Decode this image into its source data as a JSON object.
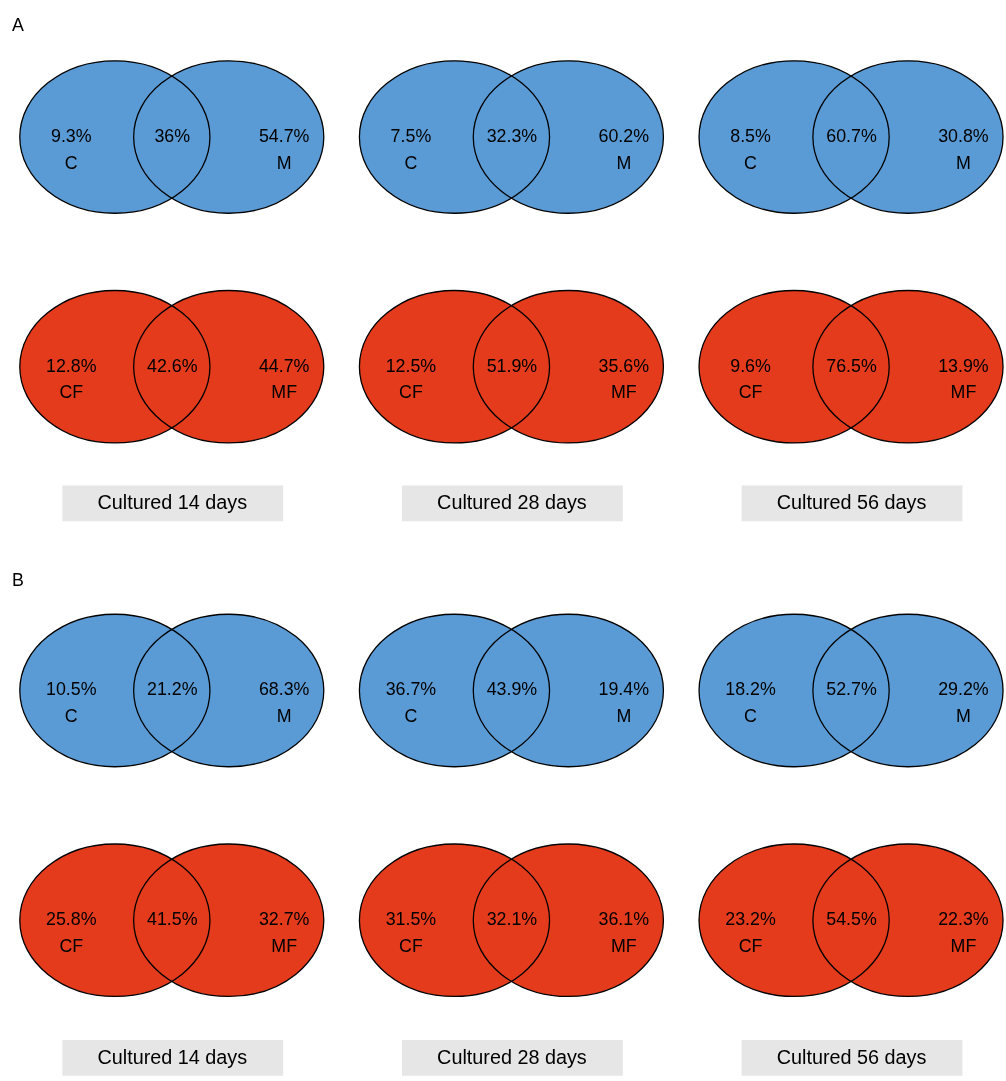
{
  "chart_data": [
    {
      "type": "other",
      "annotations": [
        "A"
      ],
      "categories": [
        "C",
        null,
        "M"
      ],
      "values": [
        9.3,
        36,
        54.7
      ],
      "value_labels": [
        "9.3%",
        "36%",
        "54.7%"
      ],
      "color": "#5b9bd5"
    },
    {
      "type": "other",
      "categories": [
        "C",
        null,
        "M"
      ],
      "values": [
        7.5,
        32.3,
        60.2
      ],
      "value_labels": [
        "7.5%",
        "32.3%",
        "60.2%"
      ],
      "color": "#5b9bd5"
    },
    {
      "type": "other",
      "categories": [
        "C",
        null,
        "M"
      ],
      "values": [
        8.5,
        60.7,
        30.8
      ],
      "value_labels": [
        "8.5%",
        "60.7%",
        "30.8%"
      ],
      "color": "#5b9bd5"
    },
    {
      "type": "other",
      "annotations": [
        "Cultured 14 days"
      ],
      "categories": [
        "CF",
        null,
        "MF"
      ],
      "values": [
        12.8,
        42.6,
        44.7
      ],
      "value_labels": [
        "12.8%",
        "42.6%",
        "44.7%"
      ],
      "color": "#e33b1b"
    },
    {
      "type": "other",
      "annotations": [
        "Cultured 28 days"
      ],
      "categories": [
        "CF",
        null,
        "MF"
      ],
      "values": [
        12.5,
        51.9,
        35.6
      ],
      "value_labels": [
        "12.5%",
        "51.9%",
        "35.6%"
      ],
      "color": "#e33b1b"
    },
    {
      "type": "other",
      "annotations": [
        "Cultured 56 days"
      ],
      "categories": [
        "CF",
        null,
        "MF"
      ],
      "values": [
        9.6,
        76.5,
        13.9
      ],
      "value_labels": [
        "9.6%",
        "76.5%",
        "13.9%"
      ],
      "color": "#e33b1b"
    },
    {
      "type": "other",
      "annotations": [
        "B"
      ],
      "categories": [
        "C",
        null,
        "M"
      ],
      "values": [
        10.5,
        21.2,
        68.3
      ],
      "value_labels": [
        "10.5%",
        "21.2%",
        "68.3%"
      ],
      "color": "#5b9bd5"
    },
    {
      "type": "other",
      "categories": [
        "C",
        null,
        "M"
      ],
      "values": [
        36.7,
        43.9,
        19.4
      ],
      "value_labels": [
        "36.7%",
        "43.9%",
        "19.4%"
      ],
      "color": "#5b9bd5"
    },
    {
      "type": "other",
      "categories": [
        "C",
        null,
        "M"
      ],
      "values": [
        18.2,
        52.7,
        29.2
      ],
      "value_labels": [
        "18.2%",
        "52.7%",
        "29.2%"
      ],
      "color": "#5b9bd5"
    },
    {
      "type": "other",
      "annotations": [
        "Cultured 14 days"
      ],
      "categories": [
        "CF",
        null,
        "MF"
      ],
      "values": [
        25.8,
        41.5,
        32.7
      ],
      "value_labels": [
        "25.8%",
        "41.5%",
        "32.7%"
      ],
      "color": "#e33b1b"
    },
    {
      "type": "other",
      "annotations": [
        "Cultured 28 days"
      ],
      "categories": [
        "CF",
        null,
        "MF"
      ],
      "values": [
        31.5,
        32.1,
        36.1
      ],
      "value_labels": [
        "31.5%",
        "32.1%",
        "36.1%"
      ],
      "color": "#e33b1b"
    },
    {
      "type": "other",
      "annotations": [
        "Cultured 56 days"
      ],
      "categories": [
        "CF",
        null,
        "MF"
      ],
      "values": [
        23.2,
        54.5,
        22.3
      ],
      "value_labels": [
        "23.2%",
        "54.5%",
        "22.3%"
      ],
      "color": "#e33b1b"
    }
  ]
}
